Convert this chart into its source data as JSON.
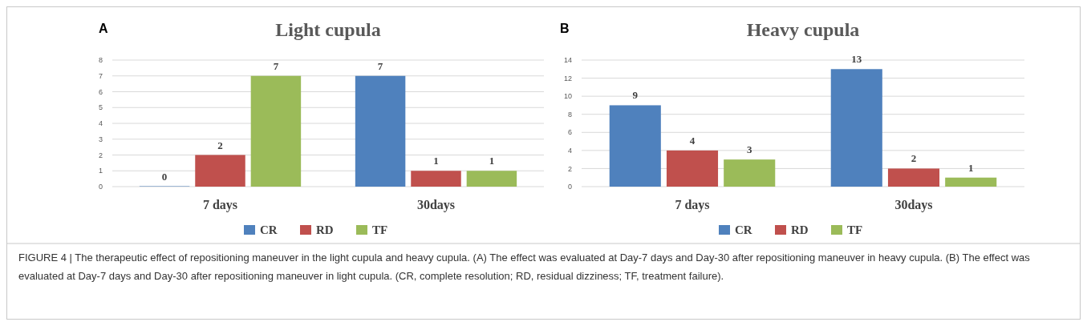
{
  "chart_data": [
    {
      "type": "bar",
      "title": "Light cupula",
      "annotations": [
        "A",
        "FIGURE 4 | The therapeutic effect of repositioning maneuver in the light cupula and heavy cupula. (A) The effect was evaluated at Day-7 days and Day-30 after repositioning maneuver in heavy cupula. (B) The effect was evaluated at Day-7 days and Day-30 after repositioning maneuver in light cupula. (CR, complete resolution; RD, residual dizziness; TF, treatment failure)."
      ],
      "categories": [
        "7 days",
        "30days"
      ],
      "series": [
        {
          "name": "CR",
          "color": "#4f81bd",
          "values": [
            0,
            7
          ]
        },
        {
          "name": "RD",
          "color": "#c0504d",
          "values": [
            2,
            1
          ]
        },
        {
          "name": "TF",
          "color": "#9bbb59",
          "values": [
            7,
            1
          ]
        }
      ],
      "ylim": [
        0,
        8
      ],
      "yticks": [
        0,
        1,
        2,
        3,
        4,
        5,
        6,
        7,
        8
      ],
      "grid": "y",
      "legend": "bottom",
      "data_labels": true
    },
    {
      "type": "bar",
      "title": "Heavy cupula",
      "annotations": [
        "B"
      ],
      "categories": [
        "7 days",
        "30days"
      ],
      "series": [
        {
          "name": "CR",
          "color": "#4f81bd",
          "values": [
            9,
            13
          ]
        },
        {
          "name": "RD",
          "color": "#c0504d",
          "values": [
            4,
            2
          ]
        },
        {
          "name": "TF",
          "color": "#9bbb59",
          "values": [
            3,
            1
          ]
        }
      ],
      "ylim": [
        0,
        14
      ],
      "yticks": [
        0,
        2,
        4,
        6,
        8,
        10,
        12,
        14
      ],
      "grid": "y",
      "legend": "bottom",
      "data_labels": true
    }
  ]
}
